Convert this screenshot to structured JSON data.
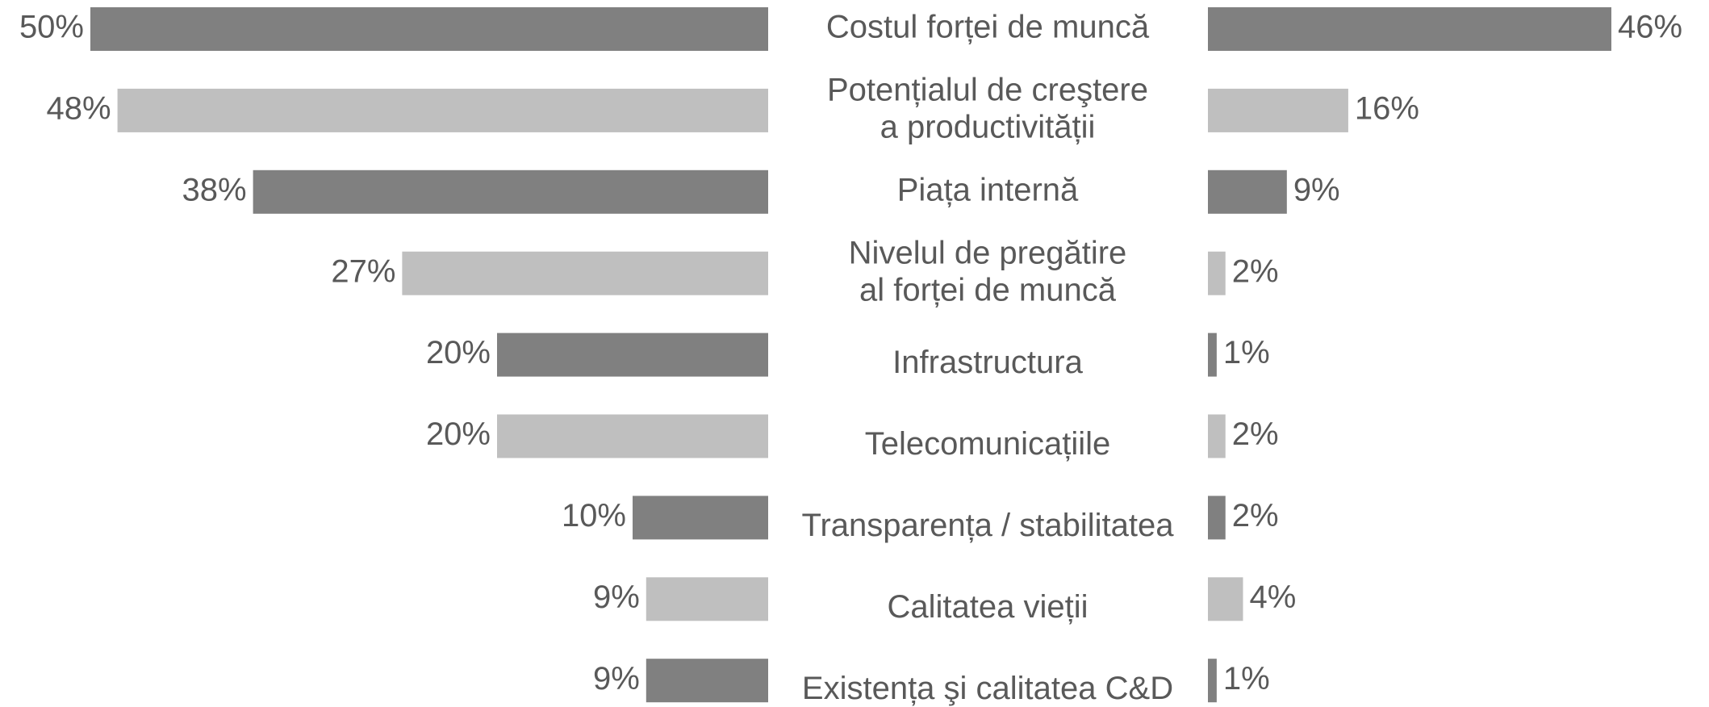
{
  "chart_data": {
    "type": "butterfly-bar",
    "categories": [
      [
        "Costul forței de muncă"
      ],
      [
        "Potențialul de creştere",
        "a productivității"
      ],
      [
        "Piața internă"
      ],
      [
        "Nivelul de pregătire",
        "al forței de muncă"
      ],
      [
        "Infrastructura"
      ],
      [
        "Telecomunicațiile"
      ],
      [
        "Transparența / stabilitatea"
      ],
      [
        "Calitatea vieții"
      ],
      [
        "Existența şi calitatea C&D"
      ]
    ],
    "colors": [
      "#808080",
      "#bfbfbf",
      "#808080",
      "#bfbfbf",
      "#808080",
      "#bfbfbf",
      "#808080",
      "#bfbfbf",
      "#808080"
    ],
    "xlim": [
      0,
      50
    ],
    "x2lim": [
      0,
      46
    ],
    "series": [
      {
        "values": [
          50,
          48,
          38,
          27,
          20,
          20,
          10,
          9,
          9
        ],
        "value_labels": [
          "50%",
          "48%",
          "38%",
          "27%",
          "20%",
          "20%",
          "10%",
          "9%",
          "9%"
        ]
      },
      {
        "axis": "x2",
        "values": [
          46,
          16,
          9,
          2,
          1,
          2,
          2,
          4,
          1
        ],
        "value_labels": [
          "46%",
          "16%",
          "9%",
          "2%",
          "1%",
          "2%",
          "2%",
          "4%",
          "1%"
        ]
      }
    ]
  }
}
